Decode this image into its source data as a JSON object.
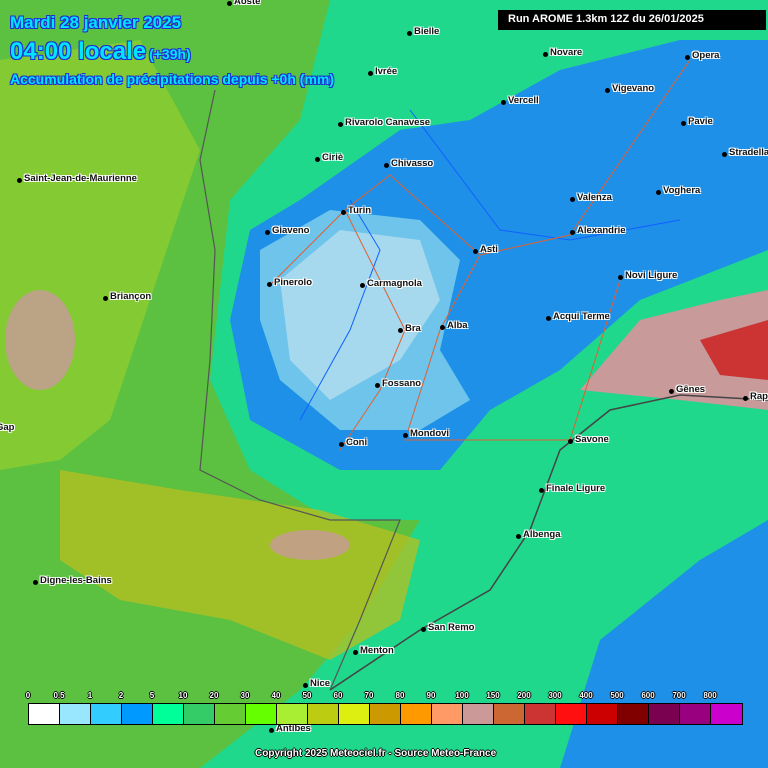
{
  "header": {
    "date": "Mardi 28 janvier 2025",
    "time": "04:00 locale",
    "lead": "(+39h)",
    "parameter": "Accumulation de précipitations depuis +0h (mm)"
  },
  "run_label": "Run AROME 1.3km 12Z du 26/01/2025",
  "cities": [
    "Aoste",
    "Bielle",
    "Ivrée",
    "Novare",
    "Opera",
    "Vercell",
    "Vigevano",
    "Rivarolo Canavese",
    "Pavie",
    "Ciriè",
    "Chivasso",
    "Stradella",
    "Saint-Jean-de-Maurienne",
    "Voghera",
    "Turin",
    "Valenza",
    "Giaveno",
    "Alexandrie",
    "Asti",
    "Novi Ligure",
    "Pinerolo",
    "Carmagnola",
    "Briançon",
    "Acqui Terme",
    "Bra",
    "Alba",
    "Fossano",
    "Gênes",
    "Rapallo",
    "Coni",
    "Mondovi",
    "Savone",
    "Finale Ligure",
    "Albenga",
    "Digne-les-Bains",
    "San Remo",
    "Menton",
    "Nice",
    "Antibes",
    "Gap"
  ],
  "legend": {
    "labels": [
      "0",
      "0.5",
      "1",
      "2",
      "5",
      "10",
      "20",
      "30",
      "40",
      "50",
      "60",
      "70",
      "80",
      "90",
      "100",
      "150",
      "200",
      "300",
      "400",
      "500",
      "600",
      "700",
      "800"
    ],
    "colors": [
      "#ffffff",
      "#99e6ff",
      "#33ccff",
      "#0099ff",
      "#00ff99",
      "#33cc66",
      "#66cc33",
      "#66ff00",
      "#aaee33",
      "#bbcc11",
      "#ddee11",
      "#cc9900",
      "#ff9900",
      "#ff9966",
      "#cc9999",
      "#cc6633",
      "#cc3333",
      "#ff0f0f",
      "#cc0000",
      "#800000",
      "#7a0050",
      "#990080",
      "#cc00cc"
    ]
  },
  "copyright": "Copyright 2025 Meteociel.fr - Source Meteo-France"
}
